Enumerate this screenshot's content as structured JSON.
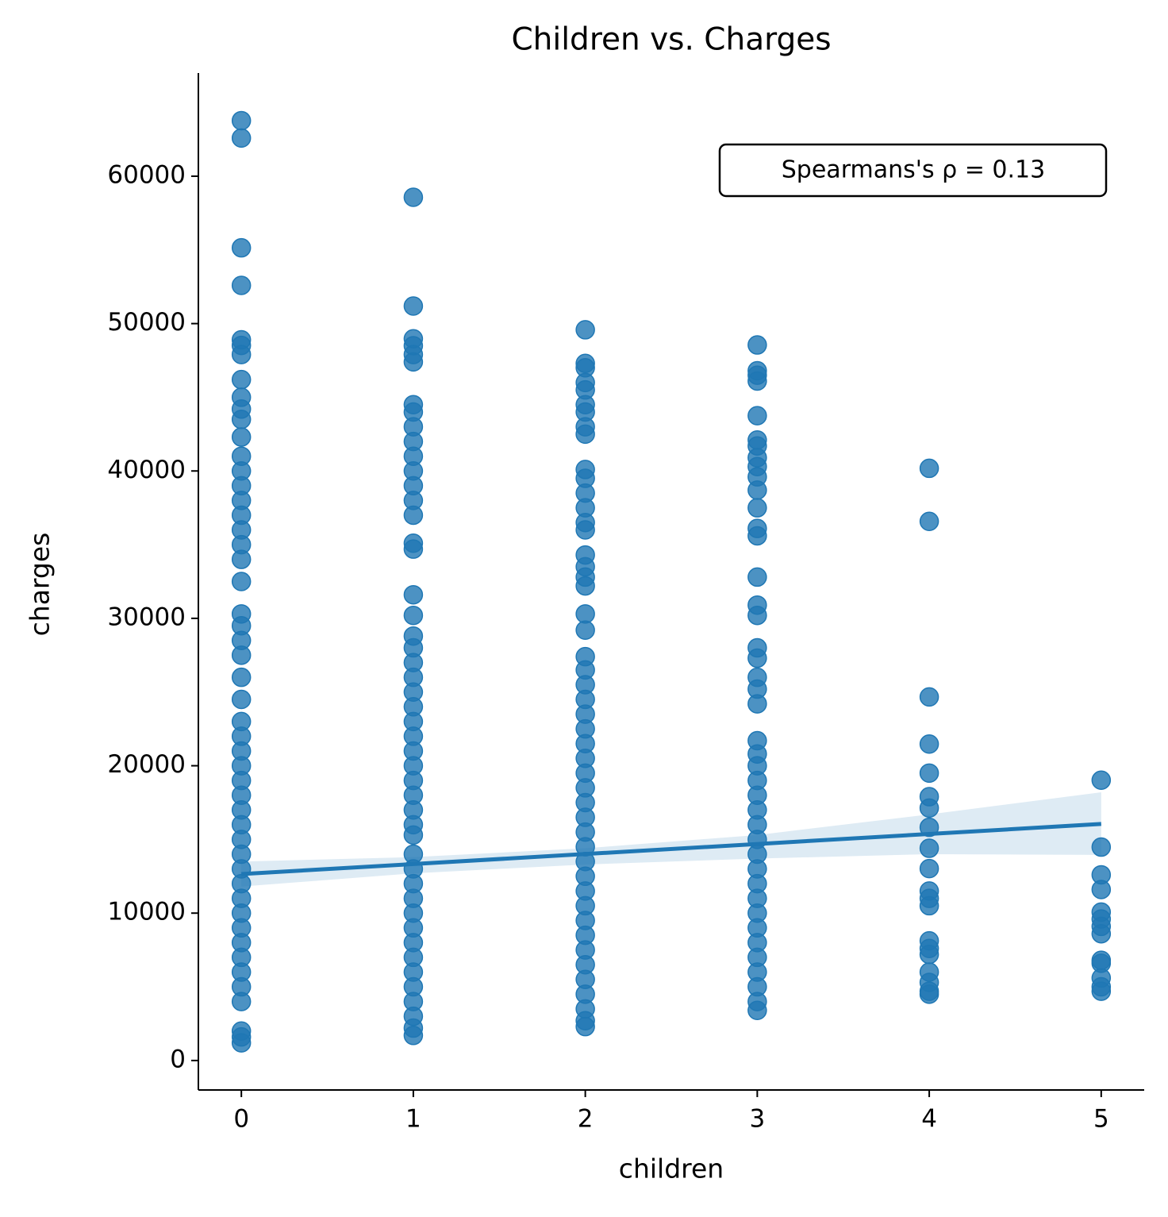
{
  "chart_data": {
    "type": "scatter",
    "title": "Children vs. Charges",
    "x_label": "children",
    "y_label": "charges",
    "annotation": "Spearmans's ρ = 0.13",
    "color": "#1f77b4",
    "xlim": [
      -0.25,
      5.25
    ],
    "ylim": [
      -2000,
      67000
    ],
    "xticks": [
      0,
      1,
      2,
      3,
      4,
      5
    ],
    "yticks": [
      0,
      10000,
      20000,
      30000,
      40000,
      50000,
      60000
    ],
    "x": [
      0,
      0,
      0,
      0,
      0,
      0,
      0,
      0,
      0,
      0,
      0,
      0,
      0,
      0,
      0,
      0,
      0,
      0,
      0,
      0,
      0,
      0,
      0,
      0,
      0,
      0,
      0,
      0,
      0,
      0,
      0,
      0,
      0,
      0,
      0,
      0,
      0,
      0,
      0,
      0,
      0,
      0,
      0,
      0,
      0,
      0,
      0,
      0,
      0,
      0,
      1,
      1,
      1,
      1,
      1,
      1,
      1,
      1,
      1,
      1,
      1,
      1,
      1,
      1,
      1,
      1,
      1,
      1,
      1,
      1,
      1,
      1,
      1,
      1,
      1,
      1,
      1,
      1,
      1,
      1,
      1,
      1,
      1,
      1,
      1,
      1,
      1,
      1,
      1,
      1,
      1,
      1,
      1,
      1,
      1,
      1,
      1,
      1,
      2,
      2,
      2,
      2,
      2,
      2,
      2,
      2,
      2,
      2,
      2,
      2,
      2,
      2,
      2,
      2,
      2,
      2,
      2,
      2,
      2,
      2,
      2,
      2,
      2,
      2,
      2,
      2,
      2,
      2,
      2,
      2,
      2,
      2,
      2,
      2,
      2,
      2,
      2,
      2,
      2,
      2,
      2,
      2,
      2,
      2,
      2,
      2,
      3,
      3,
      3,
      3,
      3,
      3,
      3,
      3,
      3,
      3,
      3,
      3,
      3,
      3,
      3,
      3,
      3,
      3,
      3,
      3,
      3,
      3,
      3,
      3,
      3,
      3,
      3,
      3,
      3,
      3,
      3,
      3,
      3,
      3,
      3,
      3,
      3,
      3,
      3,
      3,
      3,
      3,
      4,
      4,
      4,
      4,
      4,
      4,
      4,
      4,
      4,
      4,
      4,
      4,
      4,
      4,
      4,
      4,
      4,
      4,
      4,
      4,
      5,
      5,
      5,
      5,
      5,
      5,
      5,
      5,
      5,
      5,
      5,
      5,
      5
    ],
    "values": [
      63770,
      62590,
      55140,
      52590,
      48900,
      48520,
      47900,
      46200,
      45000,
      44200,
      43500,
      42300,
      41000,
      40000,
      39000,
      38000,
      37000,
      36000,
      35000,
      34000,
      32500,
      30300,
      29500,
      28500,
      27500,
      26000,
      24500,
      23000,
      22000,
      21000,
      20000,
      19000,
      18000,
      17000,
      16000,
      15000,
      14000,
      13000,
      12000,
      11000,
      10000,
      9000,
      8000,
      7000,
      6000,
      5000,
      4000,
      2000,
      1600,
      1200,
      58570,
      51190,
      48970,
      48500,
      47900,
      47400,
      44500,
      44000,
      43000,
      42000,
      41000,
      40000,
      39000,
      38000,
      37000,
      35100,
      34700,
      31600,
      30200,
      28800,
      28000,
      27000,
      26000,
      25000,
      24000,
      23000,
      22000,
      21000,
      20000,
      19000,
      18000,
      17000,
      16000,
      15300,
      14000,
      13000,
      12000,
      11000,
      10000,
      9000,
      8000,
      7000,
      6000,
      5000,
      4000,
      3000,
      2200,
      1700,
      49580,
      47300,
      47000,
      46000,
      45500,
      44500,
      44000,
      43000,
      42500,
      40100,
      39500,
      38500,
      37500,
      36500,
      36000,
      34300,
      33500,
      32800,
      32200,
      30300,
      29200,
      27400,
      26500,
      25500,
      24500,
      23500,
      22500,
      21500,
      20500,
      19500,
      18500,
      17500,
      16500,
      15500,
      14500,
      13500,
      12500,
      11500,
      10500,
      9500,
      8500,
      7500,
      6500,
      5500,
      4500,
      3500,
      2700,
      2300,
      48550,
      46800,
      46500,
      46100,
      43750,
      42100,
      41700,
      40900,
      40300,
      39600,
      38700,
      37500,
      36100,
      35600,
      32800,
      30900,
      30200,
      28000,
      27300,
      26000,
      25200,
      24200,
      21700,
      20800,
      20000,
      19000,
      18000,
      17000,
      16000,
      15000,
      14000,
      13000,
      12000,
      11000,
      10000,
      9000,
      8000,
      7000,
      6000,
      5000,
      4000,
      3400,
      40180,
      36580,
      24670,
      21470,
      19500,
      17900,
      17130,
      15820,
      14400,
      13020,
      11500,
      11000,
      10500,
      8120,
      7600,
      7200,
      6000,
      5300,
      4700,
      4500,
      19020,
      14480,
      12600,
      11600,
      10070,
      9600,
      9100,
      8600,
      6800,
      6600,
      5600,
      5000,
      4700
    ],
    "regression": {
      "x": [
        0,
        5
      ],
      "values": [
        12650,
        16050
      ]
    },
    "band": {
      "x": [
        0,
        1,
        2,
        3,
        4,
        5
      ],
      "lower": [
        11800,
        12700,
        13300,
        13700,
        14000,
        13950
      ],
      "upper": [
        13500,
        13800,
        14400,
        15300,
        16700,
        18200
      ]
    }
  }
}
